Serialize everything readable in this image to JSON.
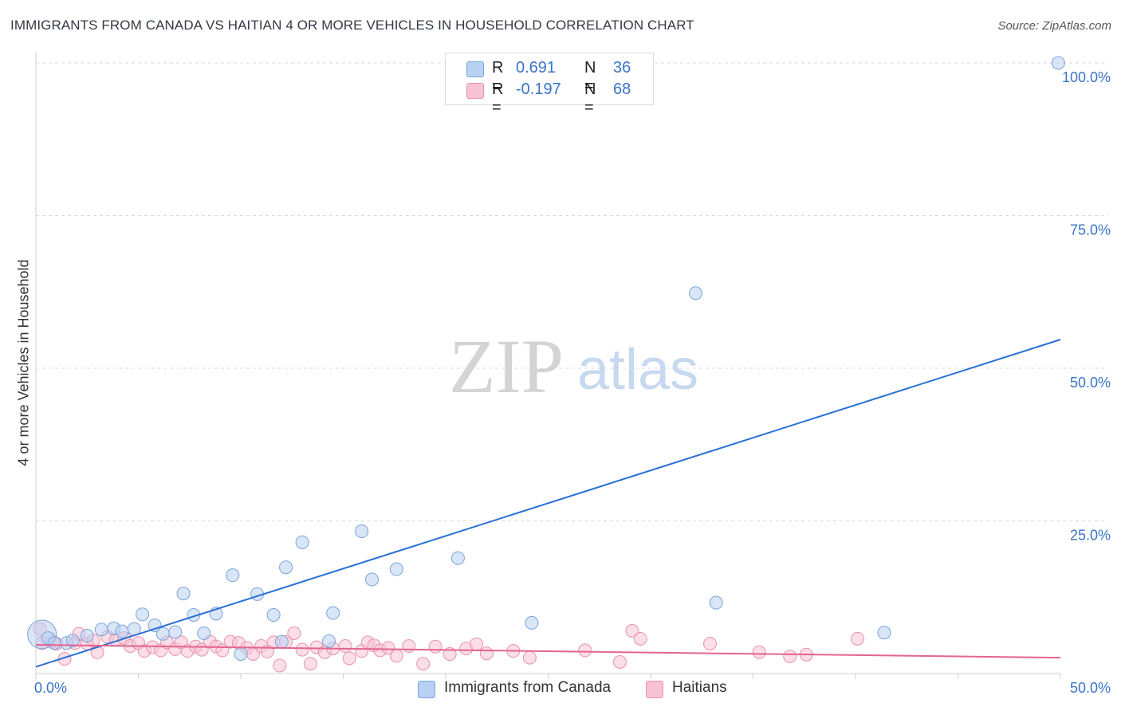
{
  "title": "IMMIGRANTS FROM CANADA VS HAITIAN 4 OR MORE VEHICLES IN HOUSEHOLD CORRELATION CHART",
  "source": "Source: ZipAtlas.com",
  "watermark": {
    "zip": "ZIP",
    "atlas": "atlas"
  },
  "legend": {
    "r_label": "R =",
    "n_label": "N =",
    "rows": [
      {
        "r": "0.691",
        "n": "36"
      },
      {
        "r": "-0.197",
        "n": "68"
      }
    ]
  },
  "colors": {
    "blue_fill": "#b8d1f2",
    "blue_stroke": "#7ba3d9",
    "blue_line": "#2a6fd4",
    "pink_fill": "#f7c3d3",
    "pink_stroke": "#e892ae",
    "pink_line": "#e4648f",
    "tick_label": "#3a74c8",
    "grid": "#d9d9d9"
  },
  "chart_data": {
    "type": "scatter",
    "title": "IMMIGRANTS FROM CANADA VS HAITIAN 4 OR MORE VEHICLES IN HOUSEHOLD CORRELATION CHART",
    "xlabel": "",
    "ylabel": "4 or more Vehicles in Household",
    "xlim": [
      0,
      50
    ],
    "ylim": [
      0,
      100
    ],
    "x_tick_labels": [
      "0.0%",
      "50.0%"
    ],
    "y_ticks": [
      25,
      50,
      75,
      100
    ],
    "y_tick_labels": [
      "25.0%",
      "50.0%",
      "75.0%",
      "100.0%"
    ],
    "grid": true,
    "series": [
      {
        "name": "Immigrants from Canada",
        "color": "blue",
        "R": 0.691,
        "N": 36,
        "trend": {
          "x": [
            0,
            50
          ],
          "y": [
            1.1,
            54.7
          ]
        },
        "points": [
          [
            0.3,
            6.4
          ],
          [
            0.6,
            5.8
          ],
          [
            0.9,
            5.0
          ],
          [
            1.5,
            5.0
          ],
          [
            1.8,
            5.4
          ],
          [
            2.5,
            6.2
          ],
          [
            3.2,
            7.2
          ],
          [
            3.8,
            7.4
          ],
          [
            4.2,
            6.9
          ],
          [
            4.8,
            7.3
          ],
          [
            5.2,
            9.7
          ],
          [
            5.8,
            7.9
          ],
          [
            6.2,
            6.5
          ],
          [
            6.8,
            6.8
          ],
          [
            7.2,
            13.1
          ],
          [
            7.7,
            9.6
          ],
          [
            8.2,
            6.6
          ],
          [
            8.8,
            9.8
          ],
          [
            9.6,
            16.1
          ],
          [
            10.0,
            3.2
          ],
          [
            10.8,
            13.0
          ],
          [
            11.6,
            9.6
          ],
          [
            12.0,
            5.2
          ],
          [
            12.2,
            17.4
          ],
          [
            13.0,
            21.5
          ],
          [
            14.3,
            5.3
          ],
          [
            14.5,
            9.9
          ],
          [
            15.9,
            23.3
          ],
          [
            16.4,
            15.4
          ],
          [
            17.6,
            17.1
          ],
          [
            20.6,
            18.9
          ],
          [
            24.2,
            8.3
          ],
          [
            32.2,
            62.3
          ],
          [
            33.2,
            11.6
          ],
          [
            41.4,
            6.7
          ],
          [
            49.9,
            100.0
          ]
        ]
      },
      {
        "name": "Haitians",
        "color": "pink",
        "R": -0.197,
        "N": 68,
        "trend": {
          "x": [
            0,
            50
          ],
          "y": [
            4.7,
            2.6
          ]
        },
        "points": [
          [
            0.3,
            5.0
          ],
          [
            0.8,
            5.3
          ],
          [
            1.0,
            4.9
          ],
          [
            1.4,
            2.4
          ],
          [
            1.9,
            5.0
          ],
          [
            2.1,
            6.5
          ],
          [
            2.5,
            4.9
          ],
          [
            2.8,
            5.4
          ],
          [
            3.0,
            3.5
          ],
          [
            3.5,
            6.0
          ],
          [
            3.9,
            5.5
          ],
          [
            4.3,
            5.8
          ],
          [
            4.6,
            4.5
          ],
          [
            5.0,
            5.0
          ],
          [
            5.3,
            3.7
          ],
          [
            5.7,
            4.3
          ],
          [
            6.1,
            3.8
          ],
          [
            6.4,
            5.1
          ],
          [
            6.8,
            4.0
          ],
          [
            7.1,
            5.1
          ],
          [
            7.4,
            3.7
          ],
          [
            7.8,
            4.4
          ],
          [
            8.1,
            3.9
          ],
          [
            8.5,
            5.2
          ],
          [
            8.8,
            4.4
          ],
          [
            9.1,
            3.8
          ],
          [
            9.5,
            5.2
          ],
          [
            9.9,
            5.0
          ],
          [
            10.3,
            4.2
          ],
          [
            10.6,
            3.2
          ],
          [
            11.0,
            4.5
          ],
          [
            11.3,
            3.6
          ],
          [
            11.6,
            5.1
          ],
          [
            11.9,
            1.3
          ],
          [
            12.2,
            5.2
          ],
          [
            12.6,
            6.6
          ],
          [
            13.0,
            3.9
          ],
          [
            13.4,
            1.6
          ],
          [
            13.7,
            4.3
          ],
          [
            14.1,
            3.5
          ],
          [
            14.5,
            4.1
          ],
          [
            15.1,
            4.5
          ],
          [
            15.3,
            2.5
          ],
          [
            15.9,
            3.7
          ],
          [
            16.2,
            5.1
          ],
          [
            16.5,
            4.6
          ],
          [
            16.8,
            3.8
          ],
          [
            17.2,
            4.2
          ],
          [
            17.6,
            2.9
          ],
          [
            18.2,
            4.5
          ],
          [
            18.9,
            1.6
          ],
          [
            19.5,
            4.4
          ],
          [
            20.2,
            3.2
          ],
          [
            21.0,
            4.1
          ],
          [
            21.5,
            4.8
          ],
          [
            22.0,
            3.3
          ],
          [
            23.3,
            3.7
          ],
          [
            24.1,
            2.6
          ],
          [
            26.8,
            3.8
          ],
          [
            28.5,
            1.9
          ],
          [
            29.1,
            7.0
          ],
          [
            29.5,
            5.7
          ],
          [
            32.9,
            4.9
          ],
          [
            35.3,
            3.5
          ],
          [
            36.8,
            2.8
          ],
          [
            37.6,
            3.1
          ],
          [
            40.1,
            5.7
          ],
          [
            0.2,
            7.3
          ]
        ]
      }
    ]
  },
  "bottom_legend": [
    "Immigrants from Canada",
    "Haitians"
  ]
}
